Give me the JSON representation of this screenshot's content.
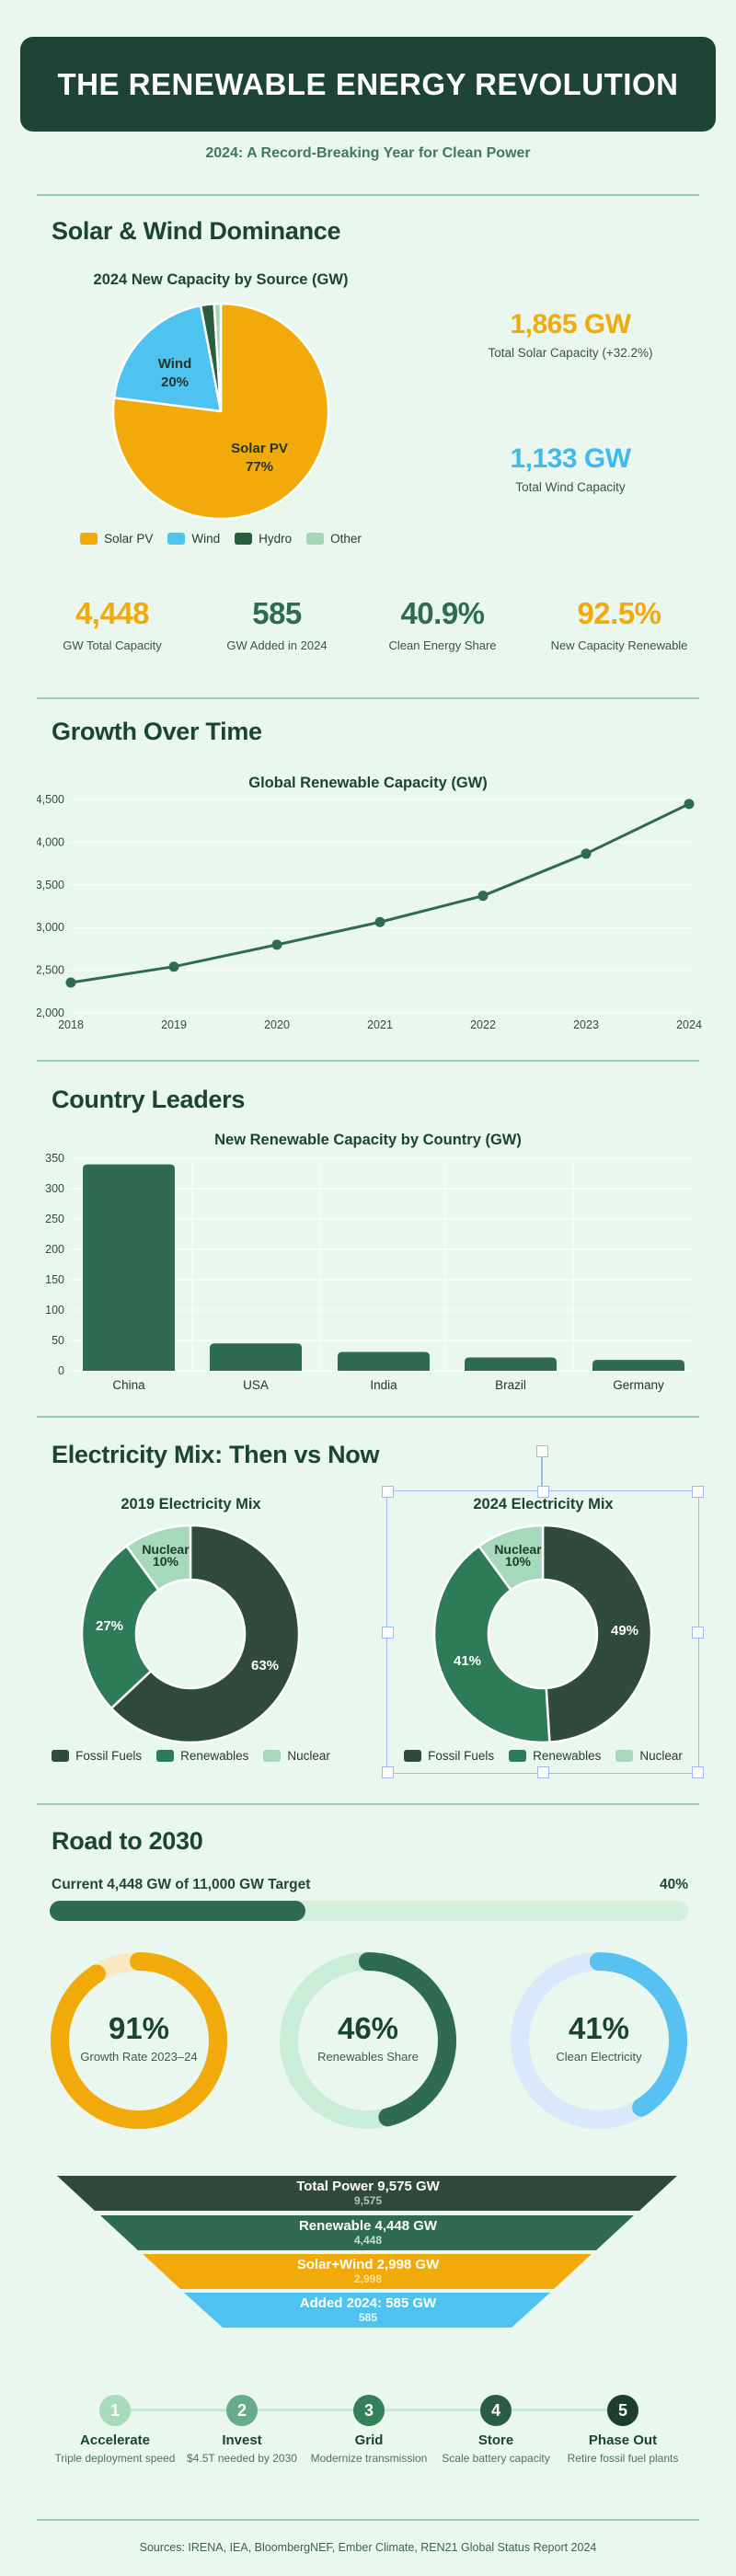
{
  "header": {
    "title": "THE RENEWABLE ENERGY REVOLUTION",
    "subtitle": "2024: A Record-Breaking Year for Clean Power"
  },
  "sections": {
    "solar_wind": {
      "heading": "Solar & Wind Dominance"
    },
    "growth": {
      "heading": "Growth Over Time"
    },
    "countries": {
      "heading": "Country Leaders"
    },
    "mix": {
      "heading": "Electricity Mix: Then vs Now"
    },
    "road": {
      "heading": "Road to 2030"
    }
  },
  "side_stats": [
    {
      "value": "1,865 GW",
      "label": "Total Solar Capacity (+32.2%)",
      "color": "#F2A90A"
    },
    {
      "value": "1,133 GW",
      "label": "Total Wind Capacity",
      "color": "#3FB9EE"
    }
  ],
  "stat_row": [
    {
      "value": "4,448",
      "label": "GW Total Capacity",
      "color": "#F2A90A"
    },
    {
      "value": "585",
      "label": "GW Added in 2024",
      "color": "#2E6B51"
    },
    {
      "value": "40.9%",
      "label": "Clean Energy Share",
      "color": "#2E6B51"
    },
    {
      "value": "92.5%",
      "label": "New Capacity Renewable",
      "color": "#F2A90A"
    }
  ],
  "chart_data": [
    {
      "id": "new_capacity_pie",
      "type": "pie",
      "title": "2024 New Capacity by Source (GW)",
      "labels": [
        "Solar PV",
        "Wind",
        "Hydro",
        "Other"
      ],
      "values": [
        77,
        20,
        2,
        1
      ],
      "colors": [
        "#F2A90A",
        "#4FC3EF",
        "#2A5C41",
        "#A5D6B8"
      ],
      "legend_position": "bottom"
    },
    {
      "id": "growth_line",
      "type": "line",
      "title": "Global Renewable Capacity (GW)",
      "x": [
        "2018",
        "2019",
        "2020",
        "2021",
        "2022",
        "2023",
        "2024"
      ],
      "values": [
        2356,
        2542,
        2799,
        3064,
        3372,
        3865,
        4448
      ],
      "ylim": [
        2000,
        4500
      ],
      "yticks": [
        "2,000",
        "2,500",
        "3,000",
        "3,500",
        "4,000",
        "4,500"
      ],
      "color": "#2E6B51",
      "grid": true
    },
    {
      "id": "country_bar",
      "type": "bar",
      "title": "New Renewable Capacity by Country (GW)",
      "categories": [
        "China",
        "USA",
        "India",
        "Brazil",
        "Germany"
      ],
      "values": [
        340,
        45,
        31,
        22,
        18
      ],
      "ylim": [
        0,
        350
      ],
      "yticks": [
        0,
        50,
        100,
        150,
        200,
        250,
        300,
        350
      ],
      "color": "#2E6B51",
      "grid": true
    },
    {
      "id": "mix_2019",
      "type": "pie",
      "subtype": "donut",
      "title": "2019 Electricity Mix",
      "labels": [
        "Fossil Fuels",
        "Renewables",
        "Nuclear"
      ],
      "values": [
        63,
        27,
        10
      ],
      "colors": [
        "#304A3C",
        "#2E7B59",
        "#A5D9BA"
      ],
      "legend_position": "bottom"
    },
    {
      "id": "mix_2024",
      "type": "pie",
      "subtype": "donut",
      "selected": true,
      "title": "2024 Electricity Mix",
      "labels": [
        "Fossil Fuels",
        "Renewables",
        "Nuclear"
      ],
      "values": [
        49,
        41,
        10
      ],
      "colors": [
        "#304A3C",
        "#2E7B59",
        "#A5D9BA"
      ],
      "legend_position": "bottom"
    },
    {
      "id": "target_progress",
      "type": "progress",
      "label": "Current 4,448 GW of 11,000 GW Target",
      "pct": 40,
      "pct_label": "40%",
      "fill_color": "#2E6B51",
      "track_color": "#D3F1DF"
    },
    {
      "id": "gauges",
      "type": "donut-gauge",
      "items": [
        {
          "pct": 91,
          "pct_label": "91%",
          "label": "Growth Rate 2023–24",
          "color": "#F2A90A",
          "track": "#FAE8C0"
        },
        {
          "pct": 46,
          "pct_label": "46%",
          "label": "Renewables Share",
          "color": "#2E6B51",
          "track": "#C9EDD9"
        },
        {
          "pct": 41,
          "pct_label": "41%",
          "label": "Clean Electricity",
          "color": "#57C1F2",
          "track": "#D9E9FB"
        }
      ]
    },
    {
      "id": "capacity_funnel",
      "type": "funnel",
      "levels": [
        {
          "title": "Total Power 9,575 GW",
          "value": "9,575",
          "color": "#2F4A3B",
          "value_color": "#AFC6B8"
        },
        {
          "title": "Renewable 4,448 GW",
          "value": "4,448",
          "color": "#2E6B51",
          "value_color": "#BFE3D0"
        },
        {
          "title": "Solar+Wind 2,998 GW",
          "value": "2,998",
          "color": "#F2A90A",
          "value_color": "#FBE09A"
        },
        {
          "title": "Added 2024: 585 GW",
          "value": "585",
          "color": "#4FC3EF",
          "value_color": "#E4F7FF"
        }
      ]
    }
  ],
  "road": {
    "timeline": {
      "steps": [
        {
          "num": "1",
          "title": "Accelerate",
          "desc": "Triple deployment speed",
          "color": "#A8DBBC"
        },
        {
          "num": "2",
          "title": "Invest",
          "desc": "$4.5T needed by 2030",
          "color": "#66AC8B"
        },
        {
          "num": "3",
          "title": "Grid",
          "desc": "Modernize transmission",
          "color": "#338059"
        },
        {
          "num": "4",
          "title": "Store",
          "desc": "Scale battery capacity",
          "color": "#2A5B43"
        },
        {
          "num": "5",
          "title": "Phase Out",
          "desc": "Retire fossil fuel plants",
          "color": "#1D3D2D"
        }
      ],
      "line_color": "#C6E9D4"
    }
  },
  "footer": {
    "sources": "Sources: IRENA, IEA, BloombergNEF, Ember Climate, REN21 Global Status Report 2024"
  },
  "colors": {
    "background": "#E9F7EE",
    "header_bg": "#1D4434",
    "heading_text": "#1B4433",
    "divider": "#93CFAC",
    "accent_yellow": "#F2A90A",
    "accent_blue": "#4FC3EF",
    "accent_green": "#2E6B51",
    "selection_blue": "#A2B8F4"
  }
}
